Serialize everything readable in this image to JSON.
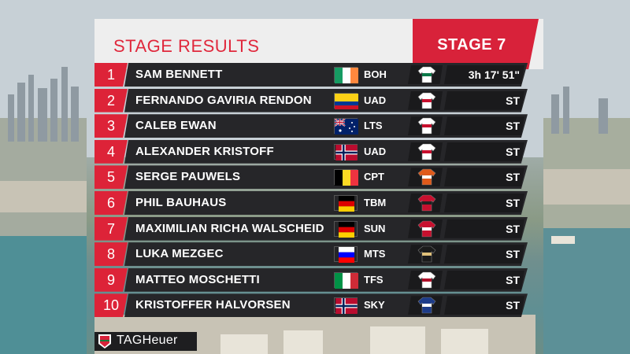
{
  "header": {
    "title": "STAGE RESULTS",
    "stage": "STAGE 7"
  },
  "sponsor": {
    "logo_text": "TAGHeuer",
    "logo_mark": "TAG"
  },
  "colors": {
    "accent_red": "#d8223a",
    "row_bg": "#262629",
    "header_bg": "#eeeeee"
  },
  "results": [
    {
      "rank": "1",
      "name": "SAM BENNETT",
      "flag": "ireland-flag",
      "team": "BOH",
      "jersey": "boh-jersey",
      "time": "3h 17' 51\""
    },
    {
      "rank": "2",
      "name": "FERNANDO GAVIRIA RENDON",
      "flag": "colombia-flag",
      "team": "UAD",
      "jersey": "uad-jersey",
      "time": "ST"
    },
    {
      "rank": "3",
      "name": "CALEB EWAN",
      "flag": "australia-flag",
      "team": "LTS",
      "jersey": "lts-jersey",
      "time": "ST"
    },
    {
      "rank": "4",
      "name": "ALEXANDER KRISTOFF",
      "flag": "norway-flag",
      "team": "UAD",
      "jersey": "uad-jersey",
      "time": "ST"
    },
    {
      "rank": "5",
      "name": "SERGE PAUWELS",
      "flag": "belgium-flag",
      "team": "CPT",
      "jersey": "cpt-jersey",
      "time": "ST"
    },
    {
      "rank": "6",
      "name": "PHIL BAUHAUS",
      "flag": "germany-flag",
      "team": "TBM",
      "jersey": "tbm-jersey",
      "time": "ST"
    },
    {
      "rank": "7",
      "name": "MAXIMILIAN RICHA WALSCHEID",
      "flag": "germany-flag",
      "team": "SUN",
      "jersey": "sun-jersey",
      "time": "ST"
    },
    {
      "rank": "8",
      "name": "LUKA MEZGEC",
      "flag": "slovenia-flag",
      "team": "MTS",
      "jersey": "mts-jersey",
      "time": "ST"
    },
    {
      "rank": "9",
      "name": "MATTEO MOSCHETTI",
      "flag": "italy-flag",
      "team": "TFS",
      "jersey": "tfs-jersey",
      "time": "ST"
    },
    {
      "rank": "10",
      "name": "KRISTOFFER HALVORSEN",
      "flag": "norway-flag",
      "team": "SKY",
      "jersey": "sky-jersey",
      "time": "ST"
    }
  ]
}
